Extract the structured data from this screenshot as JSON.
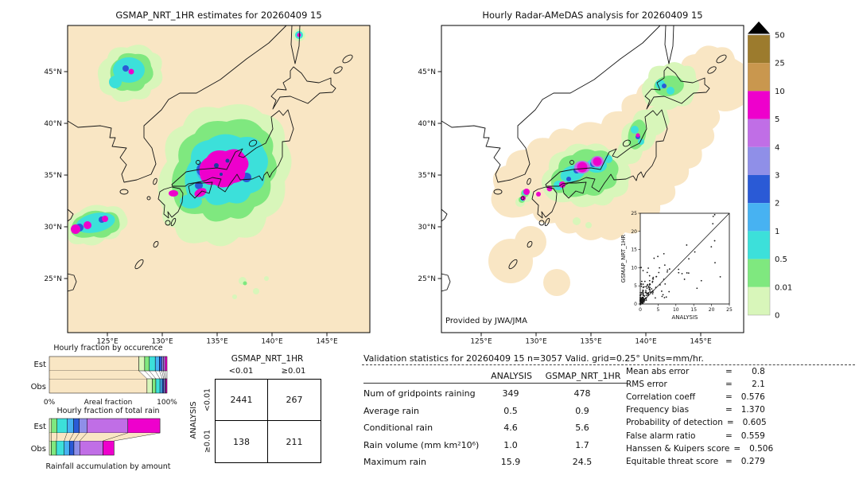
{
  "figure": {
    "left_map_title": "GSMAP_NRT_1HR estimates for 20260409 15",
    "right_map_title": "Hourly Radar-AMeDAS analysis for 20260409 15",
    "credit": "Provided by JWA/JMA"
  },
  "axes": {
    "lat_labels": [
      "45°N",
      "40°N",
      "35°N",
      "30°N",
      "25°N"
    ],
    "lon_labels": [
      "125°E",
      "130°E",
      "135°E",
      "140°E",
      "145°E"
    ]
  },
  "palette": {
    "cream": "#f9e6c4",
    "palegreen": "#d8f6ba",
    "green": "#7fe87f",
    "cyan": "#3ce0da",
    "lightblue": "#47b2f2",
    "blue": "#2a5ad6",
    "periwinkle": "#8f8fe8",
    "orchid": "#c06ee6",
    "magenta": "#ee00cc",
    "tan": "#c9974e",
    "olive": "#9c7b2d"
  },
  "colorbar": {
    "unit_labels": [
      "50",
      "25",
      "10",
      "5",
      "4",
      "3",
      "2",
      "1",
      "0.5",
      "0.01",
      "0"
    ],
    "segment_colors": [
      "olive",
      "tan",
      "magenta",
      "orchid",
      "periwinkle",
      "blue",
      "lightblue",
      "cyan",
      "green",
      "palegreen"
    ]
  },
  "inset_scatter": {
    "xlabel": "ANALYSIS",
    "ylabel": "GSMAP_NRT_1HR",
    "tick_labels": [
      "0",
      "5",
      "10",
      "15",
      "20",
      "25"
    ]
  },
  "occurrence_chart": {
    "title": "Hourly fraction by occurence",
    "row_labels": [
      "Est",
      "Obs"
    ],
    "x_axis": {
      "left": "0%",
      "center": "Areal fraction",
      "right": "100%"
    },
    "bars": [
      {
        "label": "Est",
        "width_pct": 100,
        "segments": [
          [
            "cream",
            76
          ],
          [
            "palegreen",
            5
          ],
          [
            "green",
            4
          ],
          [
            "cyan",
            5
          ],
          [
            "lightblue",
            3.5
          ],
          [
            "blue",
            2
          ],
          [
            "periwinkle",
            1.5
          ],
          [
            "orchid",
            1.5
          ],
          [
            "magenta",
            1.5
          ]
        ]
      },
      {
        "label": "Obs",
        "width_pct": 100,
        "segments": [
          [
            "cream",
            83
          ],
          [
            "palegreen",
            4.5
          ],
          [
            "green",
            3
          ],
          [
            "cyan",
            3.5
          ],
          [
            "lightblue",
            2
          ],
          [
            "blue",
            1.2
          ],
          [
            "periwinkle",
            0.9
          ],
          [
            "orchid",
            0.9
          ],
          [
            "magenta",
            1
          ]
        ]
      }
    ]
  },
  "totalrain_chart": {
    "title": "Hourly fraction of total rain",
    "row_labels": [
      "Est",
      "Obs"
    ],
    "caption": "Rainfall accumulation by amount",
    "bars": [
      {
        "label": "Est",
        "width_pct": 94,
        "segments": [
          [
            "palegreen",
            2
          ],
          [
            "green",
            5
          ],
          [
            "cyan",
            9
          ],
          [
            "lightblue",
            6
          ],
          [
            "blue",
            5
          ],
          [
            "periwinkle",
            7
          ],
          [
            "orchid",
            37
          ],
          [
            "magenta",
            29
          ]
        ]
      },
      {
        "label": "Obs",
        "width_pct": 55,
        "segments": [
          [
            "palegreen",
            3
          ],
          [
            "green",
            8
          ],
          [
            "cyan",
            12
          ],
          [
            "lightblue",
            8
          ],
          [
            "blue",
            7
          ],
          [
            "periwinkle",
            9
          ],
          [
            "orchid",
            36
          ],
          [
            "magenta",
            17
          ]
        ]
      }
    ]
  },
  "contingency": {
    "title": "GSMAP_NRT_1HR",
    "side_label": "ANALYSIS",
    "col_labels": [
      "<0.01",
      "≥0.01"
    ],
    "row_labels": [
      "<0.01",
      "≥0.01"
    ],
    "values": [
      [
        "2441",
        "267"
      ],
      [
        "138",
        "211"
      ]
    ]
  },
  "stats": {
    "header": "Validation statistics for 20260409 15  n=3057 Valid. grid=0.25°  Units=mm/hr.",
    "columns": [
      "ANALYSIS",
      "GSMAP_NRT_1HR"
    ],
    "eq": "=",
    "rows": [
      {
        "label": "Num of gridpoints raining",
        "analysis": "349",
        "gsmap": "478"
      },
      {
        "label": "Average rain",
        "analysis": "0.5",
        "gsmap": "0.9"
      },
      {
        "label": "Conditional rain",
        "analysis": "4.6",
        "gsmap": "5.6"
      },
      {
        "label": "Rain volume (mm km²10⁶)",
        "analysis": "1.0",
        "gsmap": "1.7"
      },
      {
        "label": "Maximum rain",
        "analysis": "15.9",
        "gsmap": "24.5"
      }
    ],
    "scores": [
      {
        "label": "Mean abs error",
        "value": "0.8"
      },
      {
        "label": "RMS error",
        "value": "2.1"
      },
      {
        "label": "Correlation coeff",
        "value": "0.576"
      },
      {
        "label": "Frequency bias",
        "value": "1.370"
      },
      {
        "label": "Probability of detection",
        "value": "0.605"
      },
      {
        "label": "False alarm ratio",
        "value": "0.559"
      },
      {
        "label": "Hanssen & Kuipers score",
        "value": "0.506"
      },
      {
        "label": "Equitable threat score",
        "value": "0.279"
      }
    ]
  },
  "chart_data": [
    {
      "type": "heatmap",
      "subtype": "precipitation-map",
      "title": "GSMAP_NRT_1HR estimates for 20260409 15",
      "region": "Japan and surrounding seas",
      "lat_ticks": [
        "25°N",
        "30°N",
        "35°N",
        "40°N",
        "45°N"
      ],
      "lon_ticks": [
        "125°E",
        "130°E",
        "135°E",
        "140°E",
        "145°E"
      ],
      "units": "mm/hr",
      "colorscale_boundaries": [
        0,
        0.01,
        0.5,
        1,
        2,
        3,
        4,
        5,
        10,
        25,
        50
      ],
      "note": "heavy rain band (magenta >10 mm/hr) over central Honshu; secondary cells northwest of Korea coast and near Okinawa/Amami islands"
    },
    {
      "type": "heatmap",
      "subtype": "precipitation-map",
      "title": "Hourly Radar-AMeDAS analysis for 20260409 15",
      "credit": "Provided by JWA/JMA",
      "lat_ticks": [
        "25°N",
        "30°N",
        "35°N",
        "40°N",
        "45°N"
      ],
      "lon_ticks": [
        "125°E",
        "130°E",
        "135°E",
        "140°E",
        "145°E"
      ],
      "units": "mm/hr",
      "colorscale_boundaries": [
        0,
        0.01,
        0.5,
        1,
        2,
        3,
        4,
        5,
        10,
        25,
        50
      ],
      "note": "radar coverage shaded cream along archipelago; rain cores (magenta) over Kinki/Chubu and west Kyushu"
    },
    {
      "type": "scatter",
      "title": "inset gridpoint comparison",
      "xlabel": "ANALYSIS",
      "ylabel": "GSMAP_NRT_1HR",
      "xlim": [
        0,
        25
      ],
      "ylim": [
        0,
        25
      ],
      "ticks": [
        0,
        5,
        10,
        15,
        20,
        25
      ],
      "note": "dense cluster of points near origin with 1:1 diagonal line; GSMaP mostly overestimates (points above diagonal)"
    },
    {
      "type": "table",
      "title": "contingency table GSMAP_NRT_1HR vs ANALYSIS",
      "col_axis": "GSMAP_NRT_1HR",
      "row_axis": "ANALYSIS",
      "col_labels": [
        "<0.01",
        "≥0.01"
      ],
      "row_labels": [
        "<0.01",
        "≥0.01"
      ],
      "values": [
        [
          2441,
          267
        ],
        [
          138,
          211
        ]
      ]
    },
    {
      "type": "table",
      "title": "Validation statistics for 20260409 15  n=3057 Valid. grid=0.25°  Units=mm/hr.",
      "columns": [
        "ANALYSIS",
        "GSMAP_NRT_1HR"
      ],
      "rows": [
        [
          "Num of gridpoints raining",
          349,
          478
        ],
        [
          "Average rain",
          0.5,
          0.9
        ],
        [
          "Conditional rain",
          4.6,
          5.6
        ],
        [
          "Rain volume (mm km²10⁶)",
          1.0,
          1.7
        ],
        [
          "Maximum rain",
          15.9,
          24.5
        ]
      ],
      "scores": {
        "Mean abs error": 0.8,
        "RMS error": 2.1,
        "Correlation coeff": 0.576,
        "Frequency bias": 1.37,
        "Probability of detection": 0.605,
        "False alarm ratio": 0.559,
        "Hanssen & Kuipers score": 0.506,
        "Equitable threat score": 0.279
      }
    },
    {
      "type": "bar",
      "title": "Hourly fraction by occurence",
      "orientation": "horizontal-stacked",
      "categories": [
        "Est",
        "Obs"
      ],
      "xlabel": "Areal fraction",
      "x_range_labels": [
        "0%",
        "100%"
      ],
      "note": "stacked areal fraction by rain-rate class; dry (cream) fraction ~0.76 Est vs ~0.83 Obs"
    },
    {
      "type": "bar",
      "title": "Hourly fraction of total rain",
      "orientation": "horizontal-stacked",
      "categories": [
        "Est",
        "Obs"
      ],
      "caption": "Rainfall accumulation by amount",
      "note": "bar length scaled by rain volume (Est 1.7 vs Obs 1.0); dominated by orchid/magenta (≥5 mm/hr) classes"
    }
  ]
}
